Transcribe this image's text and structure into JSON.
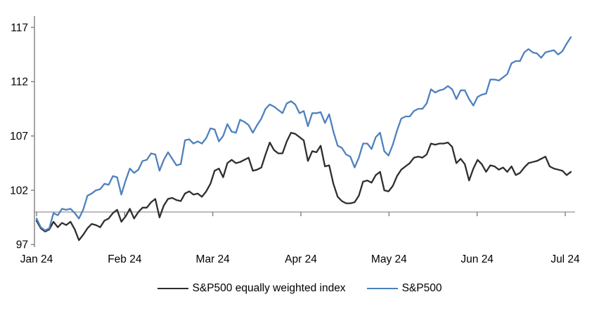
{
  "chart_data": {
    "type": "line",
    "title": "",
    "xlabel": "",
    "ylabel": "",
    "x_tick_labels": [
      "Jan 24",
      "Feb 24",
      "Mar 24",
      "Apr 24",
      "May 24",
      "Jun 24",
      "Jul 24"
    ],
    "y_ticks": [
      117,
      112,
      107,
      102,
      97
    ],
    "y_axis_range": [
      96.8,
      118
    ],
    "baseline_value": 100,
    "grid": "single horizontal reference line at 100",
    "legend_position": "bottom-center",
    "frequency": "daily (Jan 2024 - early Jul 2024)",
    "series": [
      {
        "name": "S&P500 equally weighted index",
        "color": "#2e2e2e",
        "values": [
          99.2,
          98.5,
          98.2,
          98.4,
          99.1,
          98.6,
          99.0,
          98.8,
          99.1,
          98.4,
          97.4,
          97.9,
          98.5,
          98.9,
          98.8,
          98.6,
          99.2,
          99.4,
          99.9,
          100.2,
          99.1,
          99.6,
          100.3,
          99.4,
          100.0,
          100.4,
          100.4,
          100.9,
          101.2,
          99.5,
          100.6,
          101.2,
          101.3,
          101.1,
          101.0,
          101.7,
          101.9,
          101.6,
          101.7,
          101.4,
          101.9,
          102.6,
          103.8,
          104.0,
          103.2,
          104.5,
          104.8,
          104.5,
          104.6,
          104.8,
          105.0,
          103.8,
          103.9,
          104.1,
          105.3,
          106.4,
          105.7,
          105.4,
          105.4,
          106.5,
          107.3,
          107.2,
          106.9,
          106.6,
          104.7,
          105.6,
          105.5,
          106.1,
          104.2,
          104.3,
          102.6,
          101.4,
          101.0,
          100.8,
          100.8,
          100.9,
          101.5,
          102.8,
          102.9,
          102.7,
          103.4,
          103.7,
          102.0,
          101.9,
          102.4,
          103.3,
          103.9,
          104.2,
          104.5,
          105.0,
          105.1,
          105.0,
          105.3,
          106.3,
          106.2,
          106.3,
          106.3,
          106.4,
          106.0,
          104.5,
          104.9,
          104.4,
          102.9,
          104.0,
          104.8,
          104.4,
          103.7,
          104.3,
          104.2,
          103.9,
          104.1,
          103.7,
          104.2,
          103.4,
          103.6,
          104.1,
          104.5,
          104.6,
          104.7,
          104.9,
          105.1,
          104.2,
          104.0,
          103.9,
          103.8,
          103.4,
          103.7
        ]
      },
      {
        "name": "S&P500",
        "color": "#4e81bd",
        "values": [
          99.4,
          98.6,
          98.3,
          98.5,
          99.9,
          99.7,
          100.3,
          100.2,
          100.3,
          99.9,
          99.4,
          100.2,
          101.5,
          101.7,
          102.0,
          102.1,
          102.6,
          102.5,
          103.3,
          103.2,
          101.6,
          102.9,
          104.0,
          103.6,
          103.9,
          104.7,
          104.8,
          105.4,
          105.3,
          103.8,
          104.8,
          105.5,
          104.9,
          104.3,
          104.4,
          106.6,
          106.7,
          106.3,
          106.5,
          106.3,
          106.8,
          107.7,
          107.6,
          106.5,
          107.0,
          108.1,
          107.4,
          107.3,
          108.5,
          108.3,
          108.0,
          107.3,
          108.0,
          108.6,
          109.5,
          109.9,
          109.7,
          109.4,
          109.1,
          110.0,
          110.2,
          109.9,
          109.1,
          109.3,
          107.9,
          109.1,
          109.1,
          109.2,
          108.2,
          109.0,
          107.4,
          106.1,
          105.9,
          105.3,
          105.1,
          104.1,
          105.0,
          106.3,
          106.3,
          105.8,
          106.9,
          107.3,
          105.6,
          105.2,
          106.2,
          107.5,
          108.6,
          108.8,
          108.8,
          109.3,
          109.5,
          109.5,
          110.0,
          111.3,
          111.0,
          111.2,
          111.3,
          111.6,
          111.3,
          110.4,
          111.2,
          111.2,
          110.4,
          109.8,
          110.6,
          110.8,
          110.9,
          112.2,
          112.2,
          112.1,
          112.4,
          112.7,
          113.7,
          113.9,
          113.9,
          114.7,
          115.0,
          114.7,
          114.6,
          114.2,
          114.7,
          114.8,
          114.9,
          114.5,
          114.8,
          115.5,
          116.1
        ]
      }
    ]
  },
  "legend": {
    "items": [
      {
        "label": "S&P500 equally weighted index",
        "color": "#2e2e2e"
      },
      {
        "label": "S&P500",
        "color": "#4e81bd"
      }
    ]
  },
  "colors": {
    "axis": "#7f7f7f",
    "baseline": "#a6a6a6",
    "text": "#000000",
    "background": "#ffffff"
  }
}
